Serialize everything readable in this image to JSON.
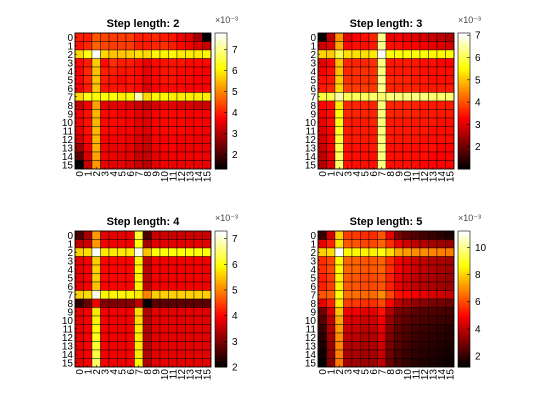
{
  "figure": {
    "background": "#ffffff",
    "colormap": "hot"
  },
  "chart_data": [
    {
      "type": "heatmap",
      "title": "Step length: 2",
      "labels": [
        "0",
        "1",
        "2",
        "3",
        "4",
        "5",
        "6",
        "7",
        "8",
        "9",
        "10",
        "11",
        "12",
        "13",
        "14",
        "15"
      ],
      "colorbar": {
        "range": [
          1.3,
          7.8
        ],
        "ticks": [
          2,
          3,
          4,
          5,
          6,
          7
        ],
        "exponent": "×10⁻³"
      },
      "z": [
        [
          4.0,
          4.0,
          4.6,
          4.4,
          4.3,
          4.3,
          4.3,
          4.0,
          4.0,
          4.1,
          4.0,
          3.9,
          3.6,
          3.4,
          2.9,
          1.3
        ],
        [
          3.9,
          4.1,
          4.7,
          4.4,
          4.3,
          4.3,
          4.3,
          4.0,
          4.0,
          4.1,
          4.2,
          4.0,
          3.8,
          3.6,
          3.4,
          3.2
        ],
        [
          5.8,
          6.3,
          7.8,
          5.8,
          5.6,
          5.6,
          5.7,
          5.9,
          5.8,
          6.1,
          6.1,
          6.1,
          6.0,
          6.0,
          6.0,
          6.1
        ],
        [
          3.8,
          4.0,
          5.7,
          3.8,
          4.2,
          4.0,
          4.0,
          3.8,
          3.5,
          3.8,
          3.9,
          3.9,
          3.9,
          3.8,
          3.8,
          3.8
        ],
        [
          3.7,
          4.1,
          5.6,
          4.0,
          4.0,
          3.9,
          3.9,
          3.8,
          3.5,
          3.8,
          3.9,
          3.9,
          3.8,
          3.8,
          3.7,
          3.7
        ],
        [
          3.7,
          4.1,
          5.6,
          4.0,
          3.9,
          3.8,
          3.9,
          3.8,
          3.5,
          3.8,
          3.9,
          3.9,
          3.8,
          3.8,
          3.7,
          3.7
        ],
        [
          3.6,
          4.0,
          5.6,
          3.9,
          3.9,
          3.9,
          3.9,
          3.8,
          3.4,
          3.7,
          3.8,
          3.8,
          3.8,
          3.7,
          3.7,
          3.7
        ],
        [
          5.8,
          6.3,
          6.2,
          6.2,
          6.2,
          6.0,
          6.1,
          7.3,
          5.8,
          6.1,
          6.1,
          6.0,
          6.0,
          6.0,
          6.0,
          6.0
        ],
        [
          3.2,
          3.6,
          5.3,
          3.5,
          3.5,
          3.5,
          3.4,
          3.2,
          3.1,
          3.4,
          3.5,
          3.5,
          3.4,
          3.4,
          3.3,
          3.3
        ],
        [
          3.6,
          3.9,
          5.5,
          3.8,
          3.8,
          3.7,
          3.7,
          3.5,
          3.4,
          3.7,
          3.8,
          3.8,
          3.8,
          3.7,
          3.7,
          3.7
        ],
        [
          3.6,
          3.9,
          5.5,
          3.8,
          3.8,
          3.8,
          3.7,
          3.5,
          3.4,
          3.7,
          3.8,
          3.8,
          3.8,
          3.7,
          3.7,
          3.7
        ],
        [
          3.5,
          3.9,
          5.5,
          3.8,
          3.8,
          3.7,
          3.7,
          3.5,
          3.4,
          3.7,
          3.8,
          3.8,
          3.8,
          3.7,
          3.7,
          3.7
        ],
        [
          3.3,
          3.8,
          5.5,
          3.7,
          3.7,
          3.7,
          3.6,
          3.4,
          3.3,
          3.7,
          3.7,
          3.7,
          3.7,
          3.7,
          3.6,
          3.6
        ],
        [
          2.8,
          3.6,
          5.4,
          3.6,
          3.6,
          3.6,
          3.5,
          3.3,
          3.2,
          3.6,
          3.7,
          3.7,
          3.6,
          3.6,
          3.6,
          3.6
        ],
        [
          2.2,
          3.4,
          5.3,
          3.6,
          3.6,
          3.5,
          3.5,
          3.2,
          3.2,
          3.5,
          3.6,
          3.6,
          3.6,
          3.6,
          3.6,
          3.6
        ],
        [
          1.3,
          3.2,
          5.2,
          3.5,
          3.5,
          3.5,
          3.4,
          3.2,
          3.1,
          3.5,
          3.6,
          3.6,
          3.6,
          3.6,
          3.6,
          3.6
        ]
      ]
    },
    {
      "type": "heatmap",
      "title": "Step length: 3",
      "labels": [
        "0",
        "1",
        "2",
        "3",
        "4",
        "5",
        "6",
        "7",
        "8",
        "9",
        "10",
        "11",
        "12",
        "13",
        "14",
        "15"
      ],
      "colorbar": {
        "range": [
          1.0,
          7.1
        ],
        "ticks": [
          2,
          3,
          4,
          5,
          6,
          7
        ],
        "exponent": "×10⁻³"
      },
      "z": [
        [
          1.0,
          2.7,
          4.6,
          3.0,
          3.3,
          3.4,
          3.6,
          6.4,
          3.1,
          3.2,
          3.1,
          3.0,
          2.9,
          2.8,
          2.7,
          2.6
        ],
        [
          2.8,
          3.0,
          4.8,
          3.3,
          3.4,
          3.4,
          3.5,
          6.4,
          3.4,
          3.4,
          3.3,
          3.3,
          3.2,
          3.1,
          3.0,
          2.9
        ],
        [
          5.2,
          5.1,
          6.0,
          5.3,
          5.3,
          5.3,
          5.4,
          7.1,
          5.6,
          5.6,
          5.6,
          5.6,
          5.6,
          5.5,
          5.5,
          5.6
        ],
        [
          3.0,
          3.3,
          5.0,
          3.6,
          3.6,
          3.6,
          3.7,
          6.3,
          3.5,
          3.5,
          3.5,
          3.5,
          3.4,
          3.4,
          3.3,
          3.3
        ],
        [
          3.2,
          3.4,
          5.0,
          3.6,
          3.7,
          3.7,
          3.7,
          6.3,
          3.5,
          3.5,
          3.5,
          3.5,
          3.4,
          3.4,
          3.4,
          3.4
        ],
        [
          3.4,
          3.5,
          5.1,
          3.7,
          3.7,
          3.7,
          3.7,
          6.4,
          3.6,
          3.6,
          3.6,
          3.5,
          3.5,
          3.4,
          3.4,
          3.4
        ],
        [
          3.5,
          3.6,
          5.2,
          3.8,
          3.8,
          3.8,
          3.8,
          6.4,
          3.6,
          3.6,
          3.6,
          3.6,
          3.5,
          3.5,
          3.5,
          3.5
        ],
        [
          5.9,
          6.0,
          6.6,
          6.1,
          6.1,
          6.1,
          6.2,
          6.2,
          6.3,
          6.3,
          6.3,
          6.3,
          6.3,
          6.2,
          6.2,
          6.2
        ],
        [
          3.3,
          3.4,
          5.4,
          3.6,
          3.6,
          3.6,
          3.6,
          6.3,
          3.6,
          3.6,
          3.6,
          3.6,
          3.5,
          3.5,
          3.5,
          3.5
        ],
        [
          3.2,
          3.4,
          5.6,
          3.6,
          3.6,
          3.6,
          3.6,
          6.3,
          3.6,
          3.6,
          3.6,
          3.6,
          3.5,
          3.5,
          3.5,
          3.5
        ],
        [
          3.1,
          3.4,
          5.7,
          3.5,
          3.5,
          3.5,
          3.6,
          6.3,
          3.5,
          3.5,
          3.5,
          3.5,
          3.5,
          3.5,
          3.4,
          3.4
        ],
        [
          3.0,
          3.3,
          5.8,
          3.5,
          3.5,
          3.5,
          3.5,
          6.3,
          3.5,
          3.5,
          3.5,
          3.5,
          3.5,
          3.4,
          3.4,
          3.4
        ],
        [
          2.9,
          3.3,
          5.9,
          3.5,
          3.5,
          3.5,
          3.5,
          6.3,
          3.5,
          3.5,
          3.5,
          3.5,
          3.4,
          3.4,
          3.4,
          3.4
        ],
        [
          2.8,
          3.2,
          6.0,
          3.4,
          3.4,
          3.4,
          3.5,
          6.3,
          3.4,
          3.4,
          3.4,
          3.4,
          3.4,
          3.4,
          3.3,
          3.3
        ],
        [
          2.7,
          3.1,
          6.1,
          3.4,
          3.4,
          3.4,
          3.4,
          6.3,
          3.4,
          3.4,
          3.4,
          3.4,
          3.4,
          3.3,
          3.3,
          3.3
        ],
        [
          2.6,
          3.0,
          6.2,
          3.4,
          3.4,
          3.4,
          3.4,
          6.3,
          3.4,
          3.4,
          3.4,
          3.4,
          3.3,
          3.3,
          3.3,
          3.3
        ]
      ]
    },
    {
      "type": "heatmap",
      "title": "Step length: 4",
      "labels": [
        "0",
        "1",
        "2",
        "3",
        "4",
        "5",
        "6",
        "7",
        "8",
        "9",
        "10",
        "11",
        "12",
        "13",
        "14",
        "15"
      ],
      "colorbar": {
        "range": [
          2.0,
          7.3
        ],
        "ticks": [
          2,
          3,
          4,
          5,
          6,
          7
        ],
        "exponent": "×10⁻³"
      },
      "z": [
        [
          2.6,
          3.3,
          5.2,
          3.8,
          3.8,
          3.8,
          3.8,
          6.2,
          2.6,
          3.6,
          3.6,
          3.6,
          3.6,
          3.6,
          3.6,
          3.6
        ],
        [
          3.5,
          3.6,
          5.2,
          3.9,
          3.9,
          3.9,
          3.9,
          6.0,
          3.3,
          3.8,
          3.8,
          3.8,
          3.8,
          3.8,
          3.8,
          3.8
        ],
        [
          5.6,
          5.7,
          7.3,
          5.8,
          5.8,
          5.8,
          5.8,
          7.2,
          5.5,
          6.0,
          6.0,
          6.0,
          6.0,
          6.0,
          6.0,
          6.0
        ],
        [
          3.8,
          3.9,
          5.6,
          4.0,
          4.0,
          4.0,
          4.0,
          5.9,
          3.5,
          3.9,
          3.9,
          3.9,
          3.9,
          3.9,
          3.9,
          3.9
        ],
        [
          3.8,
          3.9,
          5.6,
          4.0,
          4.0,
          4.0,
          4.0,
          5.9,
          3.5,
          3.9,
          3.9,
          3.9,
          3.9,
          3.9,
          3.9,
          3.9
        ],
        [
          3.8,
          3.9,
          5.6,
          4.0,
          4.0,
          4.0,
          4.0,
          5.9,
          3.5,
          3.9,
          3.9,
          3.9,
          3.9,
          3.9,
          3.9,
          3.9
        ],
        [
          3.8,
          3.9,
          5.5,
          4.0,
          4.0,
          4.0,
          4.0,
          5.9,
          3.5,
          3.9,
          3.9,
          3.9,
          3.9,
          3.9,
          3.9,
          3.9
        ],
        [
          5.6,
          5.7,
          7.2,
          5.9,
          5.9,
          5.9,
          5.9,
          5.8,
          5.0,
          5.6,
          5.6,
          5.6,
          5.6,
          5.6,
          5.6,
          5.6
        ],
        [
          2.4,
          2.8,
          3.9,
          3.0,
          3.0,
          3.0,
          3.0,
          3.5,
          2.0,
          2.7,
          2.7,
          2.7,
          2.7,
          2.7,
          2.7,
          2.7
        ],
        [
          3.8,
          3.9,
          5.8,
          3.9,
          3.9,
          3.9,
          3.9,
          5.7,
          3.4,
          3.8,
          3.8,
          3.8,
          3.8,
          3.8,
          3.8,
          3.8
        ],
        [
          3.8,
          3.9,
          5.9,
          3.9,
          3.9,
          3.9,
          3.9,
          5.7,
          3.4,
          3.8,
          3.8,
          3.8,
          3.8,
          3.8,
          3.8,
          3.8
        ],
        [
          3.8,
          3.9,
          6.0,
          3.9,
          3.9,
          3.9,
          3.9,
          5.8,
          3.4,
          3.8,
          3.8,
          3.8,
          3.8,
          3.8,
          3.8,
          3.8
        ],
        [
          3.8,
          3.9,
          6.1,
          3.9,
          3.9,
          3.9,
          3.9,
          5.8,
          3.4,
          3.8,
          3.8,
          3.8,
          3.8,
          3.8,
          3.8,
          3.8
        ],
        [
          3.8,
          3.9,
          6.2,
          3.9,
          3.9,
          3.9,
          3.9,
          5.8,
          3.4,
          3.8,
          3.8,
          3.8,
          3.8,
          3.8,
          3.8,
          3.8
        ],
        [
          3.8,
          3.9,
          6.3,
          3.9,
          3.9,
          3.9,
          3.9,
          5.8,
          3.4,
          3.8,
          3.8,
          3.8,
          3.8,
          3.8,
          3.8,
          3.8
        ],
        [
          3.8,
          3.9,
          6.5,
          3.9,
          3.9,
          3.9,
          3.9,
          5.9,
          3.4,
          3.8,
          3.8,
          3.8,
          3.8,
          3.8,
          3.8,
          3.8
        ]
      ]
    },
    {
      "type": "heatmap",
      "title": "Step length: 5",
      "labels": [
        "0",
        "1",
        "2",
        "3",
        "4",
        "5",
        "6",
        "7",
        "8",
        "9",
        "10",
        "11",
        "12",
        "13",
        "14",
        "15"
      ],
      "colorbar": {
        "range": [
          1.2,
          11.2
        ],
        "ticks": [
          2,
          4,
          6,
          8,
          10
        ],
        "exponent": "×10⁻³"
      },
      "z": [
        [
          2.0,
          4.3,
          8.0,
          5.8,
          5.8,
          5.6,
          5.6,
          6.2,
          4.6,
          3.0,
          2.6,
          2.4,
          2.2,
          2.0,
          1.8,
          1.6
        ],
        [
          4.6,
          5.4,
          8.3,
          6.2,
          6.2,
          6.0,
          6.0,
          6.4,
          5.6,
          4.6,
          4.2,
          4.0,
          3.8,
          3.6,
          3.5,
          3.4
        ],
        [
          8.0,
          8.2,
          11.2,
          8.6,
          8.6,
          8.5,
          8.5,
          8.8,
          8.2,
          7.4,
          7.2,
          7.0,
          7.0,
          6.9,
          6.8,
          6.8
        ],
        [
          5.6,
          6.0,
          8.6,
          6.4,
          6.4,
          6.2,
          6.2,
          6.4,
          5.6,
          4.8,
          4.4,
          4.2,
          4.0,
          3.8,
          3.7,
          3.6
        ],
        [
          5.6,
          6.0,
          8.6,
          6.4,
          6.4,
          6.2,
          6.2,
          6.4,
          5.6,
          4.8,
          4.4,
          4.2,
          4.0,
          3.8,
          3.7,
          3.6
        ],
        [
          5.4,
          5.8,
          8.5,
          6.2,
          6.2,
          6.0,
          6.0,
          6.2,
          5.4,
          4.6,
          4.2,
          4.0,
          3.8,
          3.7,
          3.6,
          3.5
        ],
        [
          5.4,
          5.8,
          8.5,
          6.2,
          6.2,
          6.0,
          6.0,
          6.2,
          5.4,
          4.6,
          4.2,
          4.0,
          3.8,
          3.7,
          3.6,
          3.5
        ],
        [
          6.2,
          6.4,
          8.8,
          6.6,
          6.6,
          6.5,
          6.5,
          7.0,
          6.0,
          5.2,
          5.0,
          4.8,
          4.6,
          4.4,
          4.3,
          4.2
        ],
        [
          4.6,
          5.4,
          8.4,
          5.8,
          5.8,
          5.6,
          5.6,
          6.0,
          5.0,
          4.0,
          3.6,
          3.4,
          3.2,
          3.0,
          2.9,
          2.8
        ],
        [
          2.8,
          4.4,
          7.8,
          4.8,
          4.8,
          4.6,
          4.6,
          5.2,
          3.8,
          3.0,
          2.8,
          2.6,
          2.5,
          2.4,
          2.3,
          2.2
        ],
        [
          2.4,
          4.0,
          7.4,
          4.4,
          4.4,
          4.2,
          4.2,
          4.8,
          3.4,
          2.8,
          2.6,
          2.4,
          2.3,
          2.2,
          2.1,
          2.0
        ],
        [
          2.0,
          3.8,
          7.2,
          4.2,
          4.2,
          4.0,
          4.0,
          4.6,
          3.2,
          2.6,
          2.4,
          2.2,
          2.1,
          2.0,
          1.9,
          1.8
        ],
        [
          1.8,
          3.6,
          7.0,
          4.0,
          4.0,
          3.8,
          3.8,
          4.4,
          3.0,
          2.5,
          2.3,
          2.1,
          2.0,
          1.9,
          1.8,
          1.7
        ],
        [
          1.6,
          3.4,
          6.9,
          3.8,
          3.8,
          3.7,
          3.7,
          4.2,
          2.9,
          2.4,
          2.2,
          2.0,
          1.9,
          1.8,
          1.7,
          1.6
        ],
        [
          1.4,
          3.3,
          6.8,
          3.7,
          3.7,
          3.6,
          3.6,
          4.1,
          2.8,
          2.3,
          2.1,
          1.9,
          1.8,
          1.7,
          1.6,
          1.5
        ],
        [
          1.2,
          3.2,
          6.7,
          3.6,
          3.6,
          3.5,
          3.5,
          4.0,
          2.7,
          2.2,
          2.0,
          1.8,
          1.7,
          1.6,
          1.5,
          1.4
        ]
      ]
    }
  ]
}
